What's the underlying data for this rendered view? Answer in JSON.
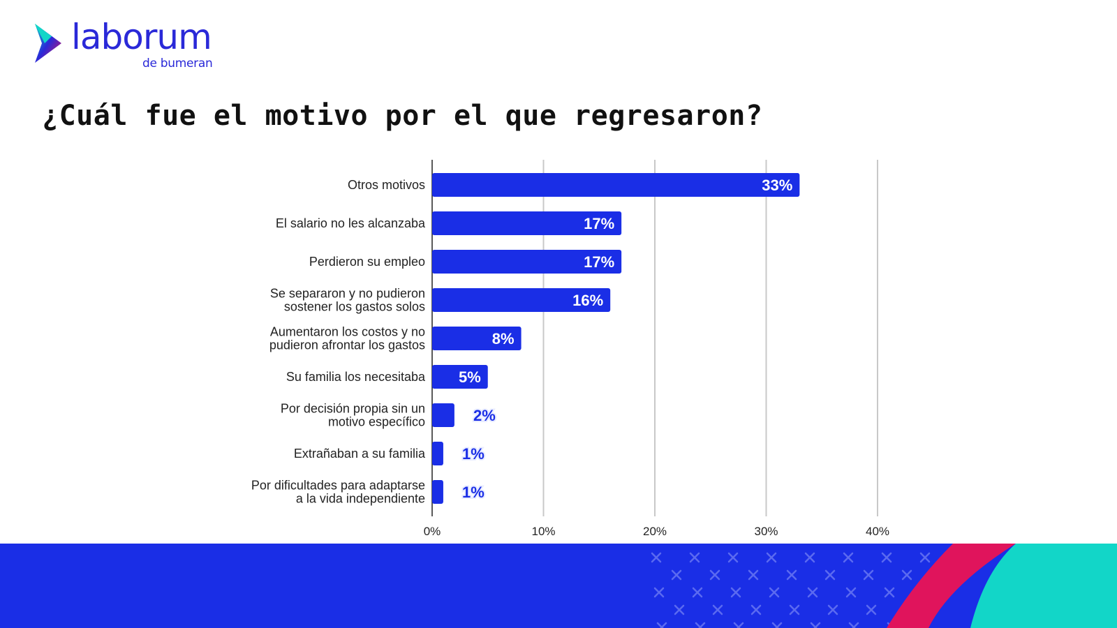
{
  "logo": {
    "word": "laborum",
    "sub": "de bumeran"
  },
  "title": "¿Cuál fue el motivo por el que regresaron?",
  "colors": {
    "bar": "#1a2ee6",
    "label_out": "#1a2ee6",
    "label_in": "#ffffff",
    "grid": "#c8c8c8",
    "footer": "#1a2ee6",
    "pink": "#e0145c",
    "teal": "#12d6c8"
  },
  "chart_data": {
    "type": "bar",
    "orientation": "horizontal",
    "categories": [
      [
        "Otros motivos"
      ],
      [
        "El salario no les alcanzaba"
      ],
      [
        "Perdieron su empleo"
      ],
      [
        "Se separaron y no pudieron",
        "sostener los gastos solos"
      ],
      [
        "Aumentaron los costos y no",
        "pudieron afrontar los gastos"
      ],
      [
        "Su familia los necesitaba"
      ],
      [
        "Por decisión propia sin un",
        "motivo específico"
      ],
      [
        "Extrañaban a su familia"
      ],
      [
        "Por dificultades para adaptarse",
        "a la vida independiente"
      ]
    ],
    "values": [
      33,
      17,
      17,
      16,
      8,
      5,
      2,
      1,
      1
    ],
    "value_labels": [
      "33%",
      "17%",
      "17%",
      "16%",
      "8%",
      "5%",
      "2%",
      "1%",
      "1%"
    ],
    "xlim": [
      0,
      40
    ],
    "xticks": [
      "0%",
      "10%",
      "20%",
      "30%",
      "40%"
    ],
    "grid": true
  }
}
